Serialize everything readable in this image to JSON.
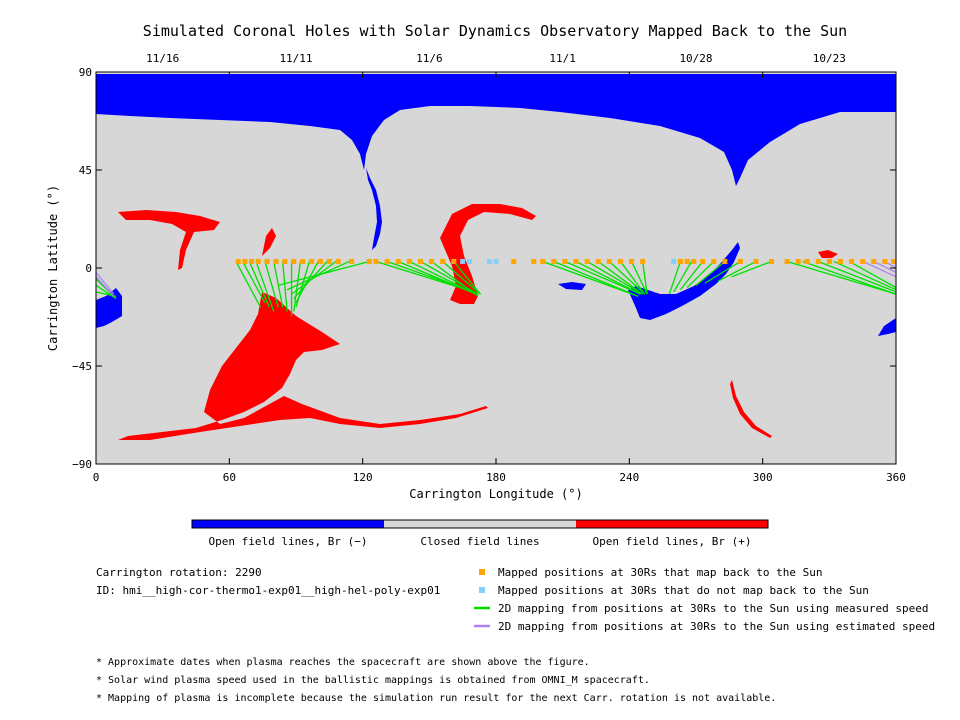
{
  "chart_data": {
    "type": "scatter",
    "title": "Simulated Coronal Holes with Solar Dynamics Observatory Mapped Back to the Sun",
    "xlabel": "Carrington Longitude (°)",
    "ylabel": "Carrington Latitude (°)",
    "xlim": [
      0,
      360
    ],
    "ylim": [
      -90,
      90
    ],
    "xticks": [
      "0",
      "60",
      "120",
      "180",
      "240",
      "300",
      "360"
    ],
    "yticks": [
      "90",
      "45",
      "0",
      "−45",
      "−90"
    ],
    "top_axis": {
      "dates": [
        {
          "label": "11/16",
          "lon": 30
        },
        {
          "label": "11/11",
          "lon": 90
        },
        {
          "label": "11/6",
          "lon": 150
        },
        {
          "label": "11/1",
          "lon": 210
        },
        {
          "label": "10/28",
          "lon": 270
        },
        {
          "label": "10/23",
          "lon": 330
        }
      ]
    },
    "grid": false,
    "colors": {
      "open_negative": "#0000ff",
      "closed": "#d7d7d7",
      "open_positive": "#ff0000",
      "mapped_back": "#ffa500",
      "not_mapped": "#87cefa",
      "measured_line": "#00e000",
      "estimated_line": "#b080f0"
    },
    "colorbar": [
      {
        "label": "Open field lines, Br (−)",
        "color": "#0000ff"
      },
      {
        "label": "Closed field lines",
        "color": "#d7d7d7"
      },
      {
        "label": "Open field lines, Br (+)",
        "color": "#ff0000"
      }
    ],
    "legend": [
      {
        "type": "square",
        "color": "#ffa500",
        "label": "Mapped positions at 30Rs that map back to the Sun"
      },
      {
        "type": "square",
        "color": "#87cefa",
        "label": "Mapped positions at 30Rs that do not map back to the Sun"
      },
      {
        "type": "line",
        "color": "#00e000",
        "label": "2D mapping from positions at 30Rs to the Sun using measured speed"
      },
      {
        "type": "line",
        "color": "#b080f0",
        "label": "2D mapping from positions at 30Rs to the Sun using estimated speed"
      }
    ],
    "info": {
      "rotation": "Carrington rotation: 2290",
      "id": "ID: hmi__high-cor-thermo1-exp01__high-hel-poly-exp01"
    },
    "footnotes": [
      "* Approximate dates when plasma reaches the spacecraft are shown above the figure.",
      "* Solar wind plasma speed used in the ballistic mappings is obtained from OMNI_M spacecraft.",
      "* Mapping of plasma is incomplete because the simulation run result for the next Carr. rotation is not available."
    ],
    "mapping_lines": [
      {
        "color": "measured",
        "from": [
          63,
          3
        ],
        "to": [
          74,
          -18
        ]
      },
      {
        "color": "measured",
        "from": [
          66,
          3
        ],
        "to": [
          76,
          -16
        ]
      },
      {
        "color": "measured",
        "from": [
          69,
          3
        ],
        "to": [
          78,
          -18
        ]
      },
      {
        "color": "measured",
        "from": [
          72,
          3
        ],
        "to": [
          80,
          -20
        ]
      },
      {
        "color": "measured",
        "from": [
          76,
          3
        ],
        "to": [
          82,
          -18
        ]
      },
      {
        "color": "measured",
        "from": [
          80,
          3
        ],
        "to": [
          84,
          -18
        ]
      },
      {
        "color": "measured",
        "from": [
          84,
          3
        ],
        "to": [
          86,
          -20
        ]
      },
      {
        "color": "measured",
        "from": [
          88,
          3
        ],
        "to": [
          88,
          -22
        ]
      },
      {
        "color": "measured",
        "from": [
          92,
          3
        ],
        "to": [
          89,
          -20
        ]
      },
      {
        "color": "measured",
        "from": [
          96,
          3
        ],
        "to": [
          90,
          -18
        ]
      },
      {
        "color": "measured",
        "from": [
          100,
          3
        ],
        "to": [
          90,
          -16
        ]
      },
      {
        "color": "measured",
        "from": [
          104,
          3
        ],
        "to": [
          89,
          -14
        ]
      },
      {
        "color": "measured",
        "from": [
          108,
          3
        ],
        "to": [
          88,
          -12
        ]
      },
      {
        "color": "measured",
        "from": [
          114,
          3
        ],
        "to": [
          86,
          -10
        ]
      },
      {
        "color": "measured",
        "from": [
          123,
          3
        ],
        "to": [
          82,
          -8
        ]
      },
      {
        "color": "measured",
        "from": [
          126,
          3
        ],
        "to": [
          170,
          -11
        ]
      },
      {
        "color": "measured",
        "from": [
          131,
          3
        ],
        "to": [
          170,
          -11
        ]
      },
      {
        "color": "measured",
        "from": [
          136,
          3
        ],
        "to": [
          171,
          -12
        ]
      },
      {
        "color": "measured",
        "from": [
          141,
          3
        ],
        "to": [
          171,
          -12
        ]
      },
      {
        "color": "measured",
        "from": [
          146,
          3
        ],
        "to": [
          172,
          -12
        ]
      },
      {
        "color": "measured",
        "from": [
          151,
          3
        ],
        "to": [
          172,
          -13
        ]
      },
      {
        "color": "measured",
        "from": [
          156,
          3
        ],
        "to": [
          173,
          -12
        ]
      },
      {
        "color": "measured",
        "from": [
          161,
          3
        ],
        "to": [
          173,
          -12
        ]
      },
      {
        "color": "measured",
        "from": [
          201,
          3
        ],
        "to": [
          244,
          -13
        ]
      },
      {
        "color": "measured",
        "from": [
          206,
          3
        ],
        "to": [
          244,
          -13
        ]
      },
      {
        "color": "measured",
        "from": [
          211,
          3
        ],
        "to": [
          245,
          -12
        ]
      },
      {
        "color": "measured",
        "from": [
          216,
          3
        ],
        "to": [
          245,
          -12
        ]
      },
      {
        "color": "measured",
        "from": [
          221,
          3
        ],
        "to": [
          246,
          -12
        ]
      },
      {
        "color": "measured",
        "from": [
          226,
          3
        ],
        "to": [
          246,
          -12
        ]
      },
      {
        "color": "measured",
        "from": [
          231,
          3
        ],
        "to": [
          247,
          -12
        ]
      },
      {
        "color": "measured",
        "from": [
          236,
          3
        ],
        "to": [
          247,
          -12
        ]
      },
      {
        "color": "measured",
        "from": [
          241,
          3
        ],
        "to": [
          248,
          -12
        ]
      },
      {
        "color": "measured",
        "from": [
          246,
          3
        ],
        "to": [
          248,
          -12
        ]
      },
      {
        "color": "measured",
        "from": [
          263,
          3
        ],
        "to": [
          258,
          -12
        ]
      },
      {
        "color": "measured",
        "from": [
          268,
          3
        ],
        "to": [
          260,
          -11
        ]
      },
      {
        "color": "measured",
        "from": [
          273,
          3
        ],
        "to": [
          263,
          -10
        ]
      },
      {
        "color": "measured",
        "from": [
          278,
          3
        ],
        "to": [
          266,
          -9
        ]
      },
      {
        "color": "measured",
        "from": [
          283,
          3
        ],
        "to": [
          270,
          -8
        ]
      },
      {
        "color": "measured",
        "from": [
          290,
          3
        ],
        "to": [
          274,
          -7
        ]
      },
      {
        "color": "measured",
        "from": [
          297,
          3
        ],
        "to": [
          280,
          -6
        ]
      },
      {
        "color": "measured",
        "from": [
          304,
          3
        ],
        "to": [
          286,
          -4
        ]
      },
      {
        "color": "measured",
        "from": [
          311,
          3
        ],
        "to": [
          360,
          -12
        ]
      },
      {
        "color": "measured",
        "from": [
          318,
          3
        ],
        "to": [
          360,
          -12
        ]
      },
      {
        "color": "measured",
        "from": [
          325,
          3
        ],
        "to": [
          360,
          -11
        ]
      },
      {
        "color": "measured",
        "from": [
          332,
          3
        ],
        "to": [
          360,
          -10
        ]
      },
      {
        "color": "measured",
        "from": [
          339,
          3
        ],
        "to": [
          360,
          -9
        ]
      },
      {
        "color": "measured",
        "from": [
          0,
          -5
        ],
        "to": [
          9,
          -14
        ]
      },
      {
        "color": "measured",
        "from": [
          0,
          -8
        ],
        "to": [
          9,
          -14
        ]
      },
      {
        "color": "measured",
        "from": [
          0,
          -11
        ],
        "to": [
          9,
          -13
        ]
      },
      {
        "color": "estimated",
        "from": [
          345,
          3
        ],
        "to": [
          360,
          -4
        ]
      },
      {
        "color": "estimated",
        "from": [
          350,
          3
        ],
        "to": [
          360,
          -2
        ]
      },
      {
        "color": "estimated",
        "from": [
          355,
          3
        ],
        "to": [
          360,
          0
        ]
      },
      {
        "color": "estimated",
        "from": [
          0,
          -2
        ],
        "to": [
          8,
          -12
        ]
      },
      {
        "color": "estimated",
        "from": [
          0,
          -4
        ],
        "to": [
          8,
          -13
        ]
      }
    ],
    "points_mapped": [
      [
        64,
        3
      ],
      [
        67,
        3
      ],
      [
        70,
        3
      ],
      [
        73,
        3
      ],
      [
        77,
        3
      ],
      [
        81,
        3
      ],
      [
        85,
        3
      ],
      [
        89,
        3
      ],
      [
        93,
        3
      ],
      [
        97,
        3
      ],
      [
        101,
        3
      ],
      [
        105,
        3
      ],
      [
        109,
        3
      ],
      [
        115,
        3
      ],
      [
        123,
        3
      ],
      [
        126,
        3
      ],
      [
        131,
        3
      ],
      [
        136,
        3
      ],
      [
        141,
        3
      ],
      [
        146,
        3
      ],
      [
        151,
        3
      ],
      [
        156,
        3
      ],
      [
        161,
        3
      ],
      [
        188,
        3
      ],
      [
        197,
        3
      ],
      [
        201,
        3
      ],
      [
        206,
        3
      ],
      [
        211,
        3
      ],
      [
        216,
        3
      ],
      [
        221,
        3
      ],
      [
        226,
        3
      ],
      [
        231,
        3
      ],
      [
        236,
        3
      ],
      [
        241,
        3
      ],
      [
        246,
        3
      ],
      [
        263,
        3
      ],
      [
        266,
        3
      ],
      [
        269,
        3
      ],
      [
        273,
        3
      ],
      [
        278,
        3
      ],
      [
        283,
        3
      ],
      [
        290,
        3
      ],
      [
        297,
        3
      ],
      [
        304,
        3
      ],
      [
        311,
        3
      ],
      [
        316,
        3
      ],
      [
        320,
        3
      ],
      [
        325,
        3
      ],
      [
        330,
        3
      ],
      [
        335,
        3
      ],
      [
        340,
        3
      ],
      [
        345,
        3
      ],
      [
        350,
        3
      ],
      [
        355,
        3
      ],
      [
        359,
        3
      ]
    ],
    "points_not_mapped": [
      [
        165,
        3
      ],
      [
        168,
        3
      ],
      [
        177,
        3
      ],
      [
        180,
        3
      ],
      [
        260,
        3
      ]
    ]
  }
}
